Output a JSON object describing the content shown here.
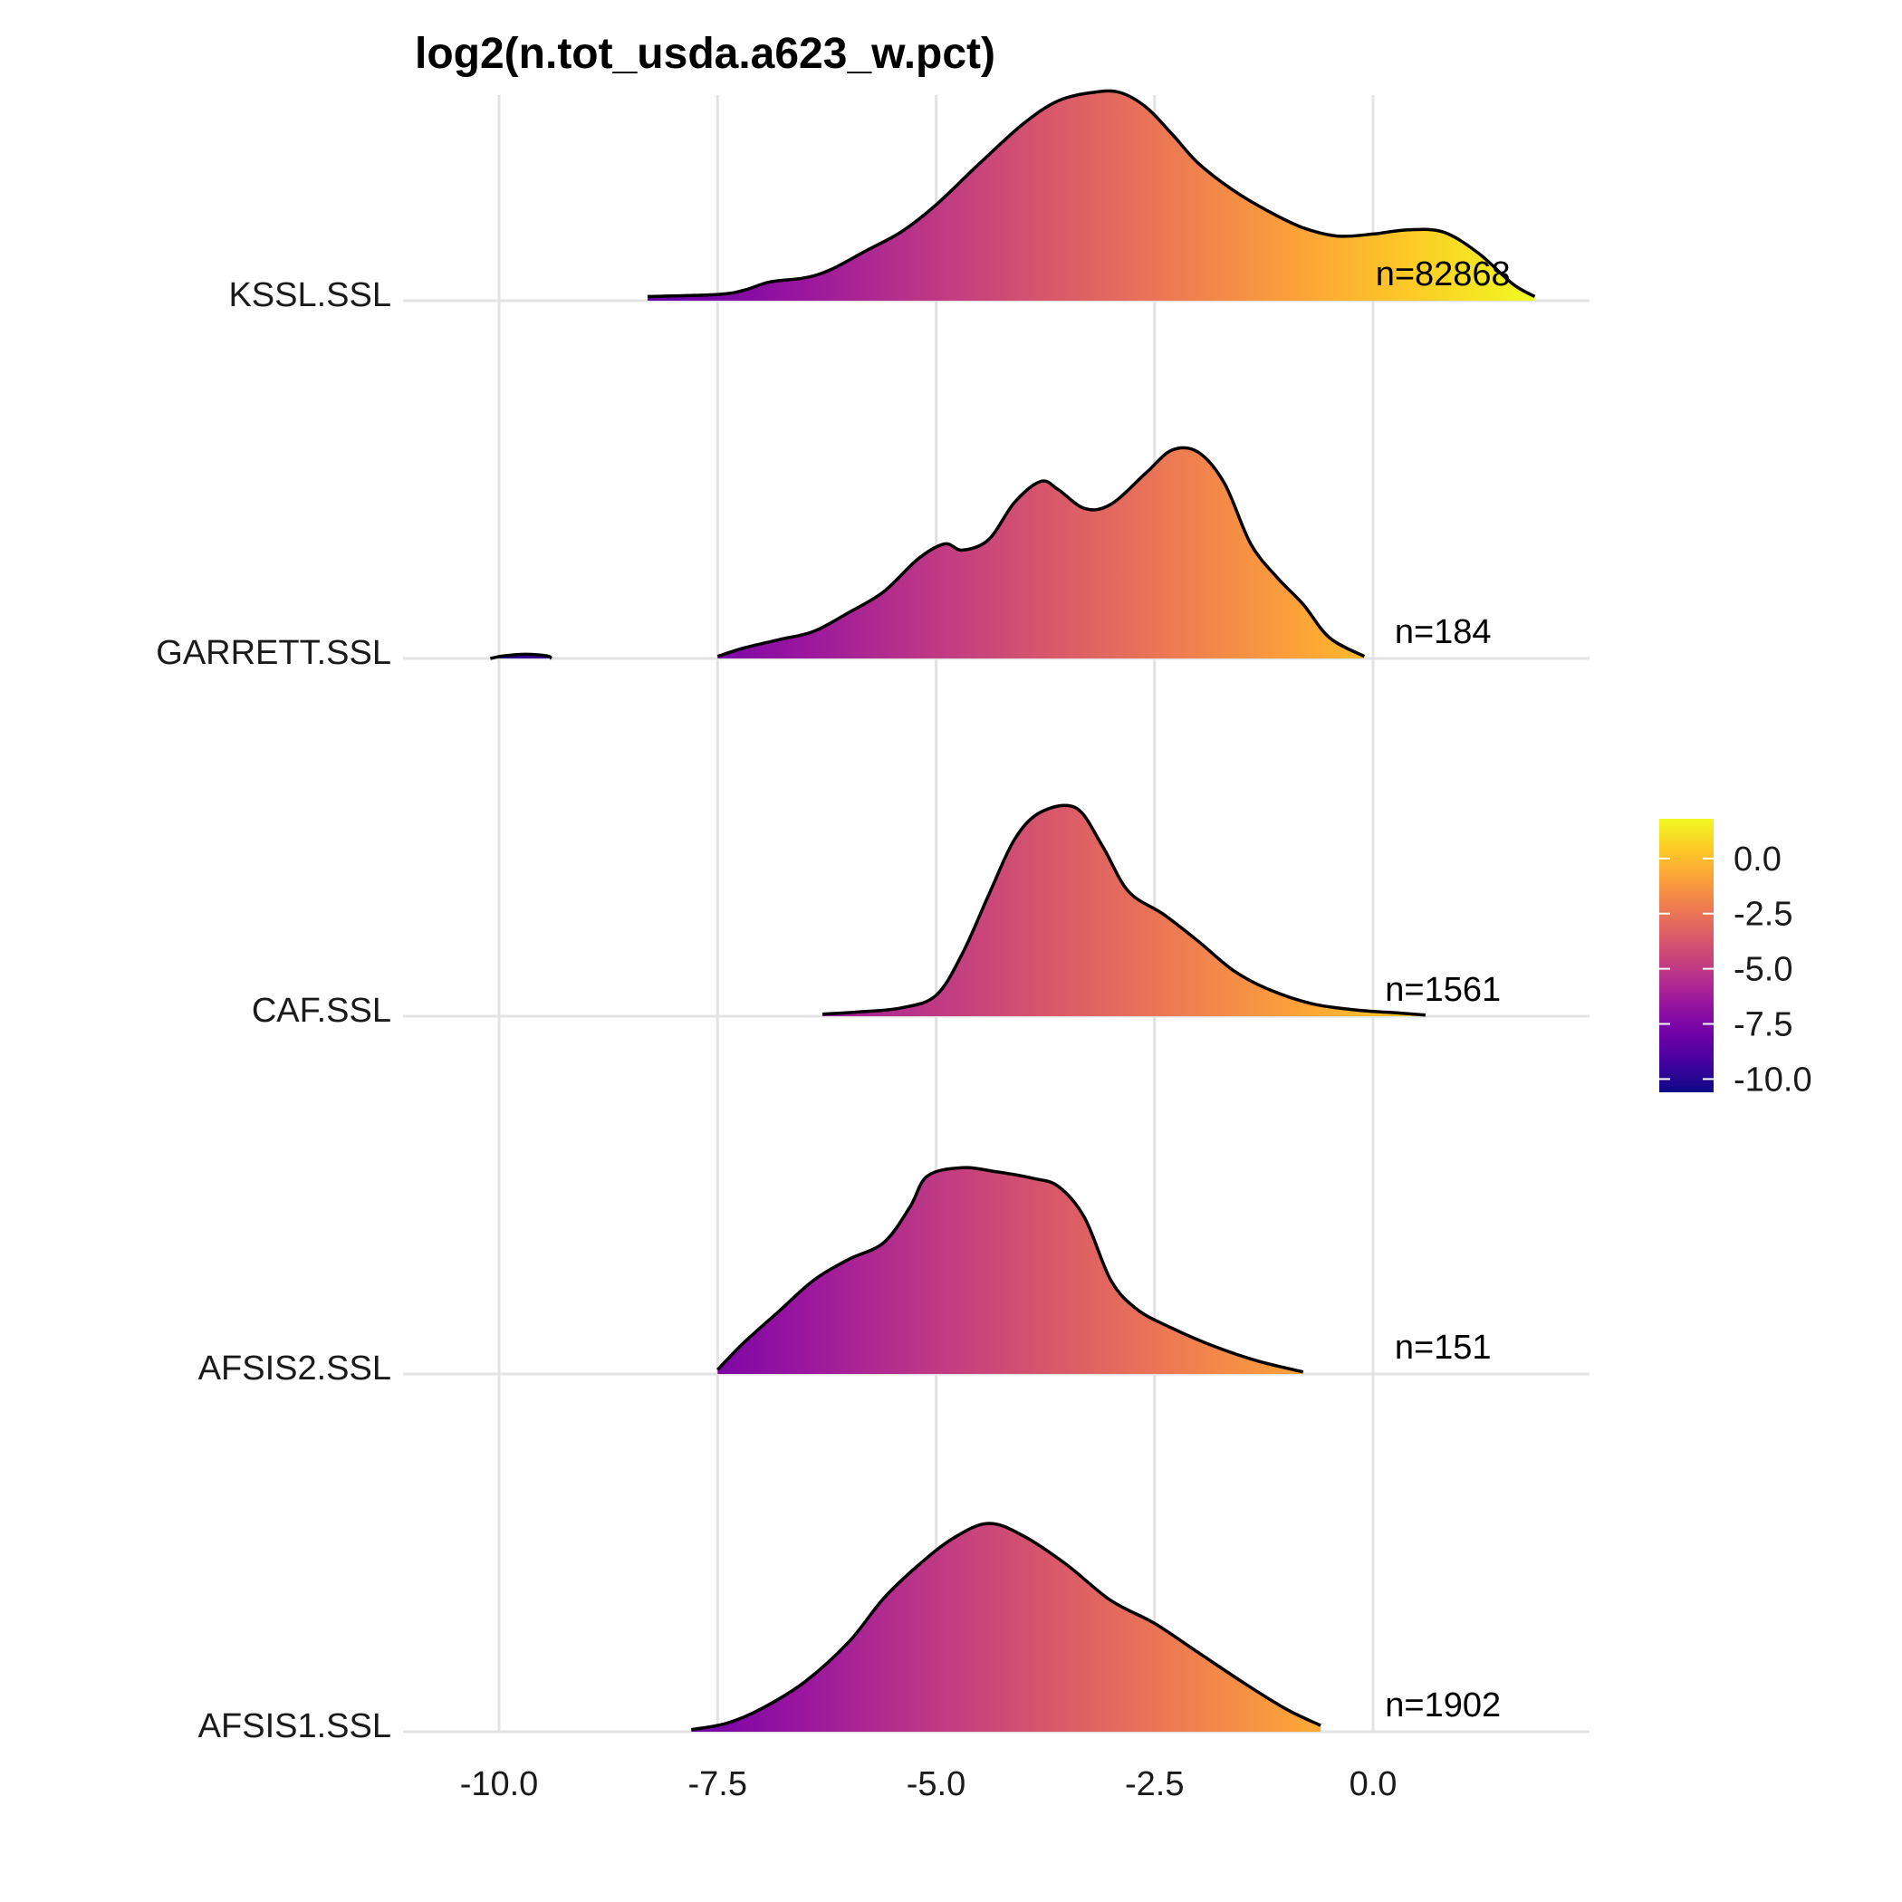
{
  "chart_data": {
    "type": "ridgeline",
    "title": "log2(n.tot_usda.a623_w.pct)",
    "xlabel": "",
    "ylabel": "",
    "xlim": [
      -11.1,
      2.45
    ],
    "x_ticks": [
      -10.0,
      -7.5,
      -5.0,
      -2.5,
      0.0
    ],
    "x_tick_labels": [
      "-10.0",
      "-7.5",
      "-5.0",
      "-2.5",
      "0.0"
    ],
    "grid": true,
    "fill": "gradient along x (plasma palette)",
    "legend": {
      "position": "right",
      "ticks": [
        0.0,
        -2.5,
        -5.0,
        -7.5,
        -10.0
      ],
      "tick_labels": [
        "0.0",
        "-2.5",
        "-5.0",
        "-7.5",
        "-10.0"
      ],
      "range": [
        -10.6,
        1.8
      ],
      "colors": [
        "#0d0887",
        "#46039f",
        "#7201a8",
        "#9c179e",
        "#bd3786",
        "#d8576b",
        "#ed7953",
        "#fb9f3a",
        "#fdca26",
        "#f0f921"
      ]
    },
    "series": [
      {
        "name": "KSSL.SSL",
        "count_label": "n=82868",
        "count_x": 0.8,
        "density": [
          [
            -8.3,
            0.02
          ],
          [
            -7.5,
            0.03
          ],
          [
            -7.2,
            0.05
          ],
          [
            -6.9,
            0.09
          ],
          [
            -6.5,
            0.11
          ],
          [
            -6.2,
            0.15
          ],
          [
            -5.8,
            0.24
          ],
          [
            -5.4,
            0.33
          ],
          [
            -5.0,
            0.46
          ],
          [
            -4.5,
            0.66
          ],
          [
            -4.0,
            0.85
          ],
          [
            -3.6,
            0.96
          ],
          [
            -3.2,
            1.0
          ],
          [
            -2.9,
            1.0
          ],
          [
            -2.6,
            0.93
          ],
          [
            -2.3,
            0.8
          ],
          [
            -2.0,
            0.66
          ],
          [
            -1.6,
            0.53
          ],
          [
            -1.2,
            0.43
          ],
          [
            -0.8,
            0.35
          ],
          [
            -0.4,
            0.31
          ],
          [
            0.0,
            0.32
          ],
          [
            0.4,
            0.34
          ],
          [
            0.8,
            0.33
          ],
          [
            1.2,
            0.23
          ],
          [
            1.6,
            0.08
          ],
          [
            1.85,
            0.02
          ]
        ]
      },
      {
        "name": "GARRETT.SSL",
        "count_label": "n=184",
        "count_x": 0.8,
        "density": [
          [
            -7.5,
            0.01
          ],
          [
            -7.2,
            0.05
          ],
          [
            -6.8,
            0.09
          ],
          [
            -6.4,
            0.13
          ],
          [
            -6.0,
            0.22
          ],
          [
            -5.6,
            0.32
          ],
          [
            -5.2,
            0.48
          ],
          [
            -4.9,
            0.55
          ],
          [
            -4.7,
            0.52
          ],
          [
            -4.4,
            0.57
          ],
          [
            -4.1,
            0.75
          ],
          [
            -3.8,
            0.85
          ],
          [
            -3.6,
            0.81
          ],
          [
            -3.3,
            0.72
          ],
          [
            -3.0,
            0.74
          ],
          [
            -2.6,
            0.89
          ],
          [
            -2.3,
            1.0
          ],
          [
            -2.0,
            0.99
          ],
          [
            -1.7,
            0.84
          ],
          [
            -1.4,
            0.55
          ],
          [
            -1.1,
            0.39
          ],
          [
            -0.8,
            0.26
          ],
          [
            -0.5,
            0.1
          ],
          [
            -0.1,
            0.01
          ]
        ],
        "outlier": [
          [
            -10.1,
            0.0
          ],
          [
            -9.95,
            0.012
          ],
          [
            -9.7,
            0.02
          ],
          [
            -9.45,
            0.012
          ],
          [
            -9.4,
            0.0
          ]
        ]
      },
      {
        "name": "CAF.SSL",
        "count_label": "n=1561",
        "count_x": 0.8,
        "density": [
          [
            -6.3,
            0.01
          ],
          [
            -5.9,
            0.02
          ],
          [
            -5.4,
            0.04
          ],
          [
            -5.0,
            0.1
          ],
          [
            -4.7,
            0.3
          ],
          [
            -4.4,
            0.58
          ],
          [
            -4.1,
            0.85
          ],
          [
            -3.8,
            0.98
          ],
          [
            -3.4,
            1.0
          ],
          [
            -3.1,
            0.82
          ],
          [
            -2.8,
            0.6
          ],
          [
            -2.4,
            0.49
          ],
          [
            -2.0,
            0.36
          ],
          [
            -1.6,
            0.22
          ],
          [
            -1.2,
            0.13
          ],
          [
            -0.7,
            0.06
          ],
          [
            -0.2,
            0.03
          ],
          [
            0.3,
            0.015
          ],
          [
            0.6,
            0.005
          ]
        ]
      },
      {
        "name": "AFSIS2.SSL",
        "count_label": "n=151",
        "count_x": 0.8,
        "density": [
          [
            -7.5,
            0.02
          ],
          [
            -7.2,
            0.15
          ],
          [
            -6.8,
            0.3
          ],
          [
            -6.4,
            0.45
          ],
          [
            -6.0,
            0.55
          ],
          [
            -5.6,
            0.63
          ],
          [
            -5.3,
            0.8
          ],
          [
            -5.1,
            0.95
          ],
          [
            -4.7,
            0.99
          ],
          [
            -4.3,
            0.97
          ],
          [
            -3.9,
            0.94
          ],
          [
            -3.6,
            0.9
          ],
          [
            -3.3,
            0.75
          ],
          [
            -3.0,
            0.45
          ],
          [
            -2.7,
            0.31
          ],
          [
            -2.3,
            0.22
          ],
          [
            -1.8,
            0.13
          ],
          [
            -1.3,
            0.06
          ],
          [
            -0.8,
            0.01
          ]
        ]
      },
      {
        "name": "AFSIS1.SSL",
        "count_label": "n=1902",
        "count_x": 0.8,
        "density": [
          [
            -7.8,
            0.01
          ],
          [
            -7.4,
            0.04
          ],
          [
            -7.0,
            0.11
          ],
          [
            -6.5,
            0.24
          ],
          [
            -6.0,
            0.43
          ],
          [
            -5.6,
            0.64
          ],
          [
            -5.2,
            0.8
          ],
          [
            -4.8,
            0.93
          ],
          [
            -4.4,
            1.0
          ],
          [
            -4.0,
            0.94
          ],
          [
            -3.5,
            0.8
          ],
          [
            -3.0,
            0.63
          ],
          [
            -2.5,
            0.52
          ],
          [
            -2.0,
            0.38
          ],
          [
            -1.5,
            0.24
          ],
          [
            -1.0,
            0.11
          ],
          [
            -0.6,
            0.03
          ]
        ]
      }
    ]
  }
}
